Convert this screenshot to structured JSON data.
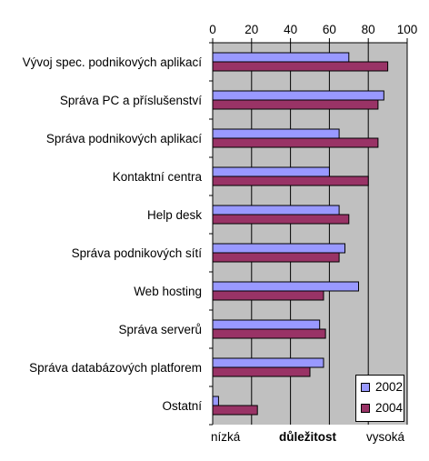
{
  "chart_data": {
    "type": "bar",
    "orientation": "horizontal",
    "categories": [
      "Vývoj spec. podnikových aplikací",
      "Správa PC a příslušenství",
      "Správa podnikových aplikací",
      "Kontaktní centra",
      "Help desk",
      "Správa podnikových sítí",
      "Web hosting",
      "Správa serverů",
      "Správa databázových platforem",
      "Ostatní"
    ],
    "series": [
      {
        "name": "2002",
        "color": "#9999ff",
        "values": [
          70,
          88,
          65,
          60,
          65,
          68,
          75,
          55,
          57,
          3
        ]
      },
      {
        "name": "2004",
        "color": "#993366",
        "values": [
          90,
          85,
          85,
          80,
          70,
          65,
          57,
          58,
          50,
          23
        ]
      }
    ],
    "xlim": [
      0,
      100
    ],
    "xticks": [
      "0",
      "20",
      "40",
      "60",
      "80",
      "100"
    ],
    "xticks_position": "top",
    "xlabel": "důležitost",
    "xlabel_low": "nízká",
    "xlabel_high": "vysoká",
    "plot_background": "#c0c0c0",
    "grid": true,
    "legend_position": "bottom-right"
  }
}
